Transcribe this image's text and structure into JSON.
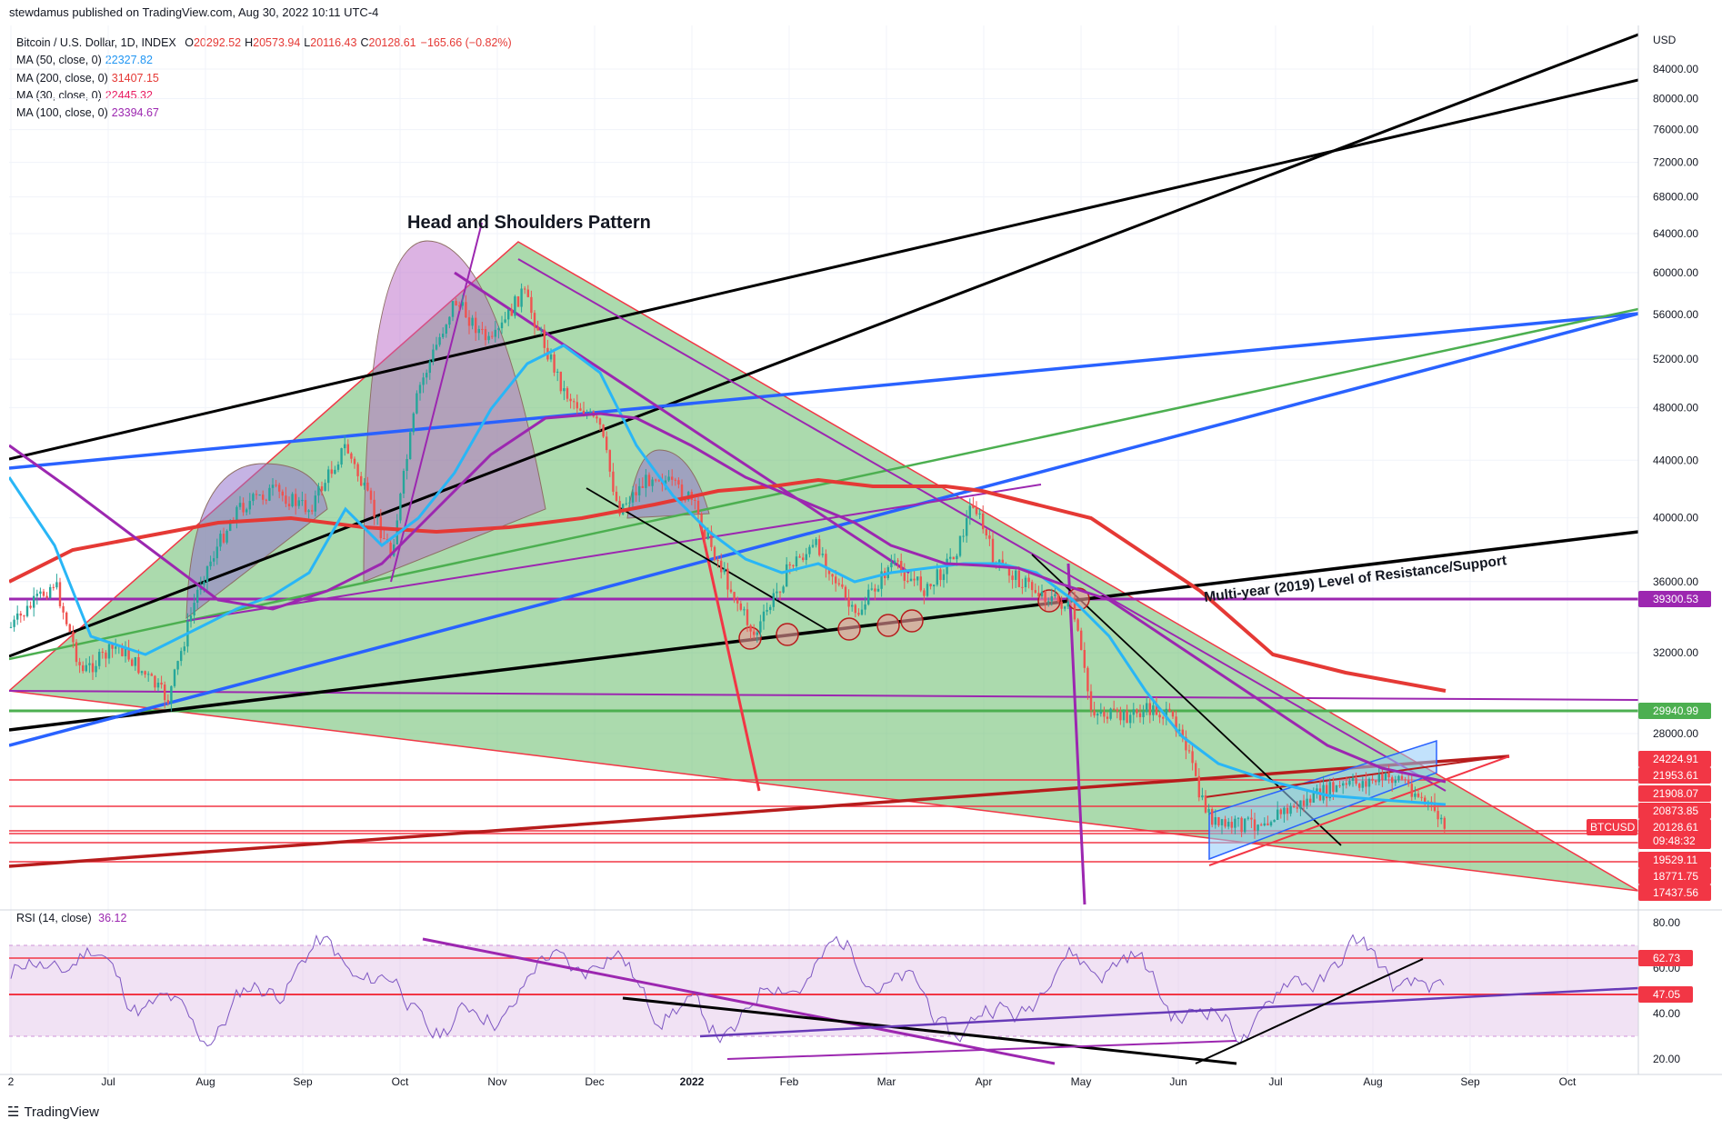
{
  "published": "stewdamus published on TradingView.com, Aug 30, 2022 10:11 UTC-4",
  "legend": {
    "symbol": "Bitcoin / U.S. Dollar, 1D, INDEX",
    "ohlc": [
      {
        "k": "O",
        "v": "20292.52"
      },
      {
        "k": "H",
        "v": "20573.94"
      },
      {
        "k": "L",
        "v": "20116.43"
      },
      {
        "k": "C",
        "v": "20128.61"
      }
    ],
    "change": "−165.66 (−0.82%)",
    "mas": [
      {
        "label": "MA (50, close, 0)",
        "value": "22327.82",
        "color": "#2196f3"
      },
      {
        "label": "MA (200, close, 0)",
        "value": "31407.15",
        "color": "#e53935"
      },
      {
        "label": "MA (30, close, 0)",
        "value": "22445.32",
        "color": "#e91e63"
      },
      {
        "label": "MA (100, close, 0)",
        "value": "23394.67",
        "color": "#9c27b0"
      }
    ]
  },
  "rsi_title": {
    "label": "RSI (14, close)",
    "value": "36.12",
    "color": "#9c27b0"
  },
  "brand": "TradingView",
  "chart_data": {
    "type": "candlestick",
    "symbol": "BTCUSD",
    "currency": "USD",
    "price_ticks": [
      "84000.00",
      "80000.00",
      "76000.00",
      "72000.00",
      "68000.00",
      "64000.00",
      "60000.00",
      "56000.00",
      "52000.00",
      "48000.00",
      "44000.00",
      "40000.00",
      "36000.00",
      "32000.00",
      "28000.00"
    ],
    "price_scale": {
      "y_top": 84000,
      "y_bottom": 28000,
      "type": "log"
    },
    "time_labels": [
      {
        "t": 0,
        "label": "2"
      },
      {
        "t": 1,
        "label": "Jul"
      },
      {
        "t": 2,
        "label": "Aug"
      },
      {
        "t": 3,
        "label": "Sep"
      },
      {
        "t": 4,
        "label": "Oct"
      },
      {
        "t": 5,
        "label": "Nov"
      },
      {
        "t": 6,
        "label": "Dec"
      },
      {
        "t": 7,
        "label": "2022"
      },
      {
        "t": 8,
        "label": "Feb"
      },
      {
        "t": 9,
        "label": "Mar"
      },
      {
        "t": 10,
        "label": "Apr"
      },
      {
        "t": 11,
        "label": "May"
      },
      {
        "t": 12,
        "label": "Jun"
      },
      {
        "t": 13,
        "label": "Jul"
      },
      {
        "t": 14,
        "label": "Aug"
      },
      {
        "t": 15,
        "label": "Sep"
      },
      {
        "t": 16,
        "label": "Oct"
      }
    ],
    "price_badges": [
      {
        "label": "39300.53",
        "color": "#9c27b0"
      },
      {
        "label": "29940.99",
        "color": "#4caf50"
      },
      {
        "label": "24224.91",
        "color": "#f23645"
      },
      {
        "label": "21953.61",
        "color": "#f23645"
      },
      {
        "label": "21908.07",
        "color": "#f23645"
      },
      {
        "label": "20873.85",
        "color": "#f23645"
      },
      {
        "label": "20128.61",
        "color": "#f23645"
      },
      {
        "label": "09:48:32",
        "color": "#f23645"
      },
      {
        "label": "19529.11",
        "color": "#f23645"
      },
      {
        "label": "18771.75",
        "color": "#f23645"
      },
      {
        "label": "17437.56",
        "color": "#f23645"
      }
    ],
    "symbol_tag": "BTCUSD",
    "annotations": [
      {
        "text": "Head and Shoulders Pattern"
      },
      {
        "text": "Multi-year (2019) Level of Resistance/Support"
      }
    ],
    "rsi": {
      "ticks": [
        "80.00",
        "60.00",
        "40.00",
        "20.00"
      ],
      "badges": [
        {
          "label": "62.73",
          "color": "#f23645"
        },
        {
          "label": "47.05",
          "color": "#f23645"
        }
      ],
      "value": 36.12
    }
  }
}
